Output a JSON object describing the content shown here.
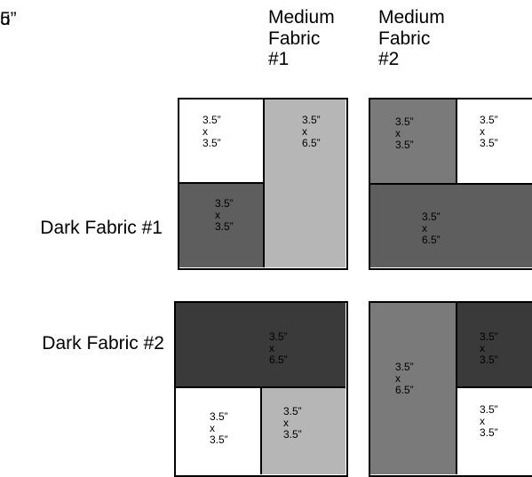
{
  "top_fragment": {
    "line1": "u",
    "line2": "5”"
  },
  "headers": {
    "medium1": "Medium\nFabric\n#1",
    "medium2": "Medium\nFabric\n#2"
  },
  "rows": {
    "dark1": "Dark Fabric #1",
    "dark2": "Dark Fabric #2"
  },
  "colors": {
    "white": "#ffffff",
    "light_gray": "#b6b6b6",
    "medium_gray": "#7a7a7a",
    "dark_gray": "#5e5e5e",
    "darkest_gray": "#3a3a3a",
    "outline": "#000000"
  },
  "blocks": [
    {
      "id": "block-1",
      "pieces": [
        {
          "fill": "white",
          "label": "3.5”\nx\n3.5”"
        },
        {
          "fill": "light_gray",
          "label": "3.5”\nx\n6.5”"
        },
        {
          "fill": "dark_gray",
          "label": "3.5”\nx\n3.5”"
        }
      ]
    },
    {
      "id": "block-2",
      "pieces": [
        {
          "fill": "medium_gray",
          "label": "3.5”\nx\n3.5”"
        },
        {
          "fill": "white",
          "label": "3.5”\nx\n3.5”"
        },
        {
          "fill": "dark_gray",
          "label": "3.5”\nx\n6.5”"
        }
      ]
    },
    {
      "id": "block-3",
      "pieces": [
        {
          "fill": "darkest_gray",
          "label": "3.5”\nx\n6.5”"
        },
        {
          "fill": "white",
          "label": "3.5”\nx\n3.5”"
        },
        {
          "fill": "light_gray",
          "label": "3.5”\nx\n3.5”"
        }
      ]
    },
    {
      "id": "block-4",
      "pieces": [
        {
          "fill": "medium_gray",
          "label": "3.5”\nx\n6.5”"
        },
        {
          "fill": "darkest_gray",
          "label": "3.5”\nx\n3.5”"
        },
        {
          "fill": "white",
          "label": "3.5”\nx\n3.5”"
        }
      ]
    }
  ]
}
